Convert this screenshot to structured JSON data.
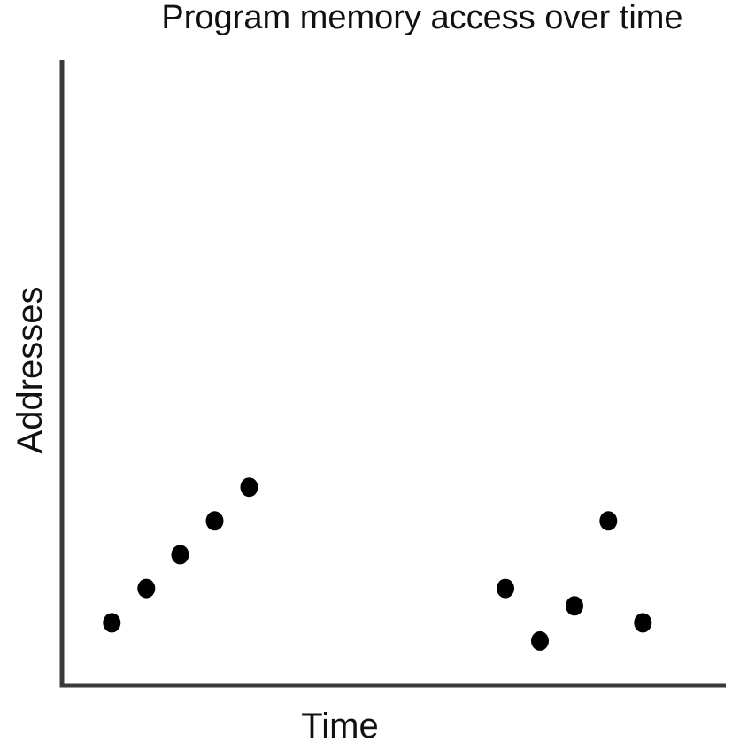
{
  "chart_data": {
    "type": "scatter",
    "title": "Program memory access over time",
    "xlabel": "Time",
    "ylabel": "Addresses",
    "xlim": [
      0,
      100
    ],
    "ylim": [
      0,
      100
    ],
    "grid": false,
    "series": [
      {
        "points": [
          {
            "x": 7.5,
            "y": 10
          },
          {
            "x": 12.7,
            "y": 15.5
          },
          {
            "x": 17.8,
            "y": 20.9
          },
          {
            "x": 23,
            "y": 26.3
          },
          {
            "x": 28.2,
            "y": 31.7
          },
          {
            "x": 66.8,
            "y": 15.5
          },
          {
            "x": 72,
            "y": 7.1
          },
          {
            "x": 77.2,
            "y": 12.7
          },
          {
            "x": 82.3,
            "y": 26.3
          },
          {
            "x": 87.5,
            "y": 10
          }
        ]
      }
    ],
    "colors": {
      "points": "#000000",
      "axes": "#3a3a3a",
      "text": "#111111"
    }
  }
}
